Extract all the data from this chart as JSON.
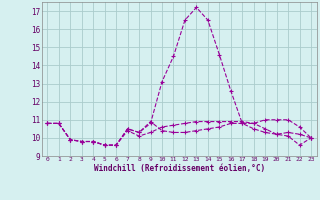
{
  "xlabel": "Windchill (Refroidissement éolien,°C)",
  "ylabel": "",
  "background_color": "#d6f0f0",
  "line_color": "#990099",
  "grid_color": "#aacccc",
  "x": [
    0,
    1,
    2,
    3,
    4,
    5,
    6,
    7,
    8,
    9,
    10,
    11,
    12,
    13,
    14,
    15,
    16,
    17,
    18,
    19,
    20,
    21,
    22,
    23
  ],
  "series1": [
    10.8,
    10.8,
    9.9,
    9.8,
    9.8,
    9.6,
    9.6,
    10.5,
    10.3,
    10.9,
    10.4,
    10.3,
    10.3,
    10.4,
    10.5,
    10.6,
    10.8,
    10.8,
    10.5,
    10.3,
    10.2,
    10.3,
    10.2,
    10.0
  ],
  "series2": [
    10.8,
    10.8,
    9.9,
    9.8,
    9.8,
    9.6,
    9.6,
    10.4,
    10.1,
    10.3,
    10.6,
    10.7,
    10.8,
    10.9,
    10.9,
    10.9,
    10.9,
    10.9,
    10.8,
    10.5,
    10.2,
    10.1,
    9.6,
    10.0
  ],
  "series3": [
    10.8,
    10.8,
    9.9,
    9.8,
    9.8,
    9.6,
    9.6,
    10.5,
    10.3,
    10.8,
    13.1,
    14.5,
    16.5,
    17.2,
    16.5,
    14.6,
    12.6,
    10.8,
    10.8,
    11.0,
    11.0,
    11.0,
    10.6,
    10.0
  ],
  "ylim": [
    9,
    17.5
  ],
  "xlim": [
    -0.5,
    23.5
  ],
  "yticks": [
    9,
    10,
    11,
    12,
    13,
    14,
    15,
    16,
    17
  ],
  "xticks": [
    0,
    1,
    2,
    3,
    4,
    5,
    6,
    7,
    8,
    9,
    10,
    11,
    12,
    13,
    14,
    15,
    16,
    17,
    18,
    19,
    20,
    21,
    22,
    23
  ],
  "font_color": "#660066"
}
